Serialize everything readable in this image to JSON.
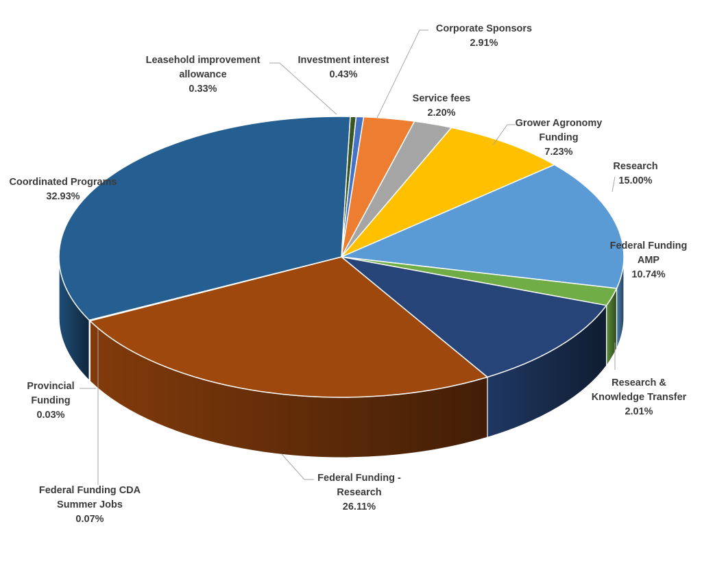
{
  "chart_data": {
    "type": "pie",
    "style": "3d",
    "slices": [
      {
        "label": "Leasehold improvement allowance",
        "label_lines": [
          "Leasehold improvement",
          "allowance"
        ],
        "value": 0.33,
        "value_text": "0.33%",
        "color": "#375623"
      },
      {
        "label": "Investment interest",
        "label_lines": [
          "Investment interest"
        ],
        "value": 0.43,
        "value_text": "0.43%",
        "color": "#4472C4"
      },
      {
        "label": "Corporate Sponsors",
        "label_lines": [
          "Corporate Sponsors"
        ],
        "value": 2.91,
        "value_text": "2.91%",
        "color": "#ED7D31"
      },
      {
        "label": "Service fees",
        "label_lines": [
          "Service fees"
        ],
        "value": 2.2,
        "value_text": "2.20%",
        "color": "#A5A5A5"
      },
      {
        "label": "Grower Agronomy Funding",
        "label_lines": [
          "Grower Agronomy",
          "Funding"
        ],
        "value": 7.23,
        "value_text": "7.23%",
        "color": "#FFC000"
      },
      {
        "label": "Research",
        "label_lines": [
          "Research"
        ],
        "value": 15.0,
        "value_text": "15.00%",
        "color": "#5B9BD5"
      },
      {
        "label": "Research & Knowledge Transfer",
        "label_lines": [
          "Research &",
          "Knowledge Transfer"
        ],
        "value": 2.01,
        "value_text": "2.01%",
        "color": "#70AD47"
      },
      {
        "label": "Federal Funding AMP",
        "label_lines": [
          "Federal Funding",
          "AMP"
        ],
        "value": 10.74,
        "value_text": "10.74%",
        "color": "#264478"
      },
      {
        "label": "Federal Funding - Research",
        "label_lines": [
          "Federal Funding -",
          "Research"
        ],
        "value": 26.11,
        "value_text": "26.11%",
        "color": "#9E480E"
      },
      {
        "label": "Federal Funding CDA Summer Jobs",
        "label_lines": [
          "Federal Funding CDA",
          "Summer Jobs"
        ],
        "value": 0.07,
        "value_text": "0.07%",
        "color": "#636363"
      },
      {
        "label": "Provincial Funding",
        "label_lines": [
          "Provincial",
          "Funding"
        ],
        "value": 0.03,
        "value_text": "0.03%",
        "color": "#997300"
      },
      {
        "label": "Coordinated Programs",
        "label_lines": [
          "Coordinated Programs"
        ],
        "value": 32.93,
        "value_text": "32.93%",
        "color": "#255E91"
      }
    ]
  }
}
